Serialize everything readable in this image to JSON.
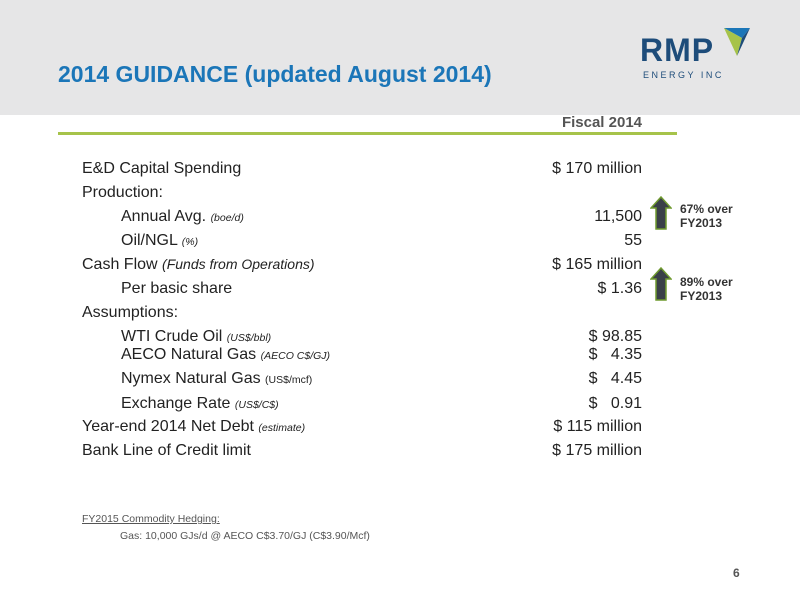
{
  "header": {
    "title": "2014 GUIDANCE (updated August 2014)",
    "logo_word": "RMP",
    "logo_sub": "ENERGY INC",
    "colors": {
      "title": "#1b76b8",
      "logo": "#1d4c7a",
      "mark": "#a6c34a",
      "rule": "#a6c34a"
    }
  },
  "column_header": "Fiscal 2014",
  "rows": [
    {
      "label": "E&D Capital Spending",
      "value": "$ 170 million"
    },
    {
      "label": "Production:",
      "value": ""
    },
    {
      "label": "Annual Avg. ",
      "note": "(boe/d)",
      "value": "11,500"
    },
    {
      "label": "Oil/NGL ",
      "note": "(%)",
      "value": "55"
    },
    {
      "label": "Cash Flow ",
      "note": "(Funds from Operations)",
      "value": "$ 165 million"
    },
    {
      "label": "Per basic share",
      "value": "$ 1.36"
    },
    {
      "label": "Assumptions:",
      "value": ""
    },
    {
      "label": "WTI Crude Oil ",
      "note": "(US$/bbl)",
      "value": "$ 98.85"
    },
    {
      "label": "AECO Natural Gas ",
      "note": "(AECO C$/GJ)",
      "value": "$   4.35"
    },
    {
      "label": "Nymex Natural Gas ",
      "note": "(US$/mcf)",
      "value": "$   4.45"
    },
    {
      "label": "Exchange Rate ",
      "note": "(US$/C$)",
      "value": "$   0.91"
    },
    {
      "label": "Year-end 2014 Net Debt ",
      "note": "(estimate)",
      "value": "$ 115 million"
    },
    {
      "label": "Bank Line of Credit limit",
      "value": "$ 175 million"
    }
  ],
  "callouts": [
    {
      "line1": "67% over",
      "line2": "FY2013",
      "icon": "up-arrow-icon"
    },
    {
      "line1": "89% over",
      "line2": "FY2013",
      "icon": "up-arrow-icon"
    }
  ],
  "hedging": {
    "title": "FY2015 Commodity Hedging:",
    "line": "Gas: 10,000 GJs/d @ AECO C$3.70/GJ (C$3.90/Mcf)"
  },
  "page_number": "6"
}
